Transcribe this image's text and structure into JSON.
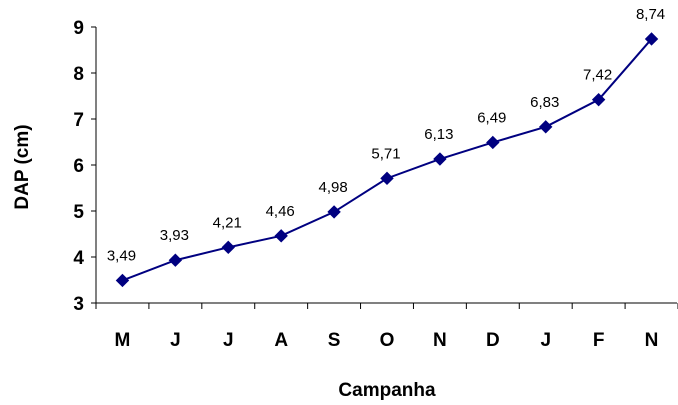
{
  "chart_data": {
    "type": "line",
    "title": "",
    "xlabel": "Campanha",
    "ylabel": "DAP (cm)",
    "categories": [
      "M",
      "J",
      "J",
      "A",
      "S",
      "O",
      "N",
      "D",
      "J",
      "F",
      "N"
    ],
    "series": [
      {
        "values": [
          3.49,
          3.93,
          4.21,
          4.46,
          4.98,
          5.71,
          6.13,
          6.49,
          6.83,
          7.42,
          8.74
        ],
        "labels": [
          "3,49",
          "3,93",
          "4,21",
          "4,46",
          "4,98",
          "5,71",
          "6,13",
          "6,49",
          "6,83",
          "7,42",
          "8,74"
        ],
        "color": "#000080",
        "marker": "diamond"
      }
    ],
    "ylim": [
      3,
      9
    ],
    "yticks": [
      "3",
      "4",
      "5",
      "6",
      "7",
      "8",
      "9"
    ],
    "grid": false,
    "legend": "none"
  }
}
